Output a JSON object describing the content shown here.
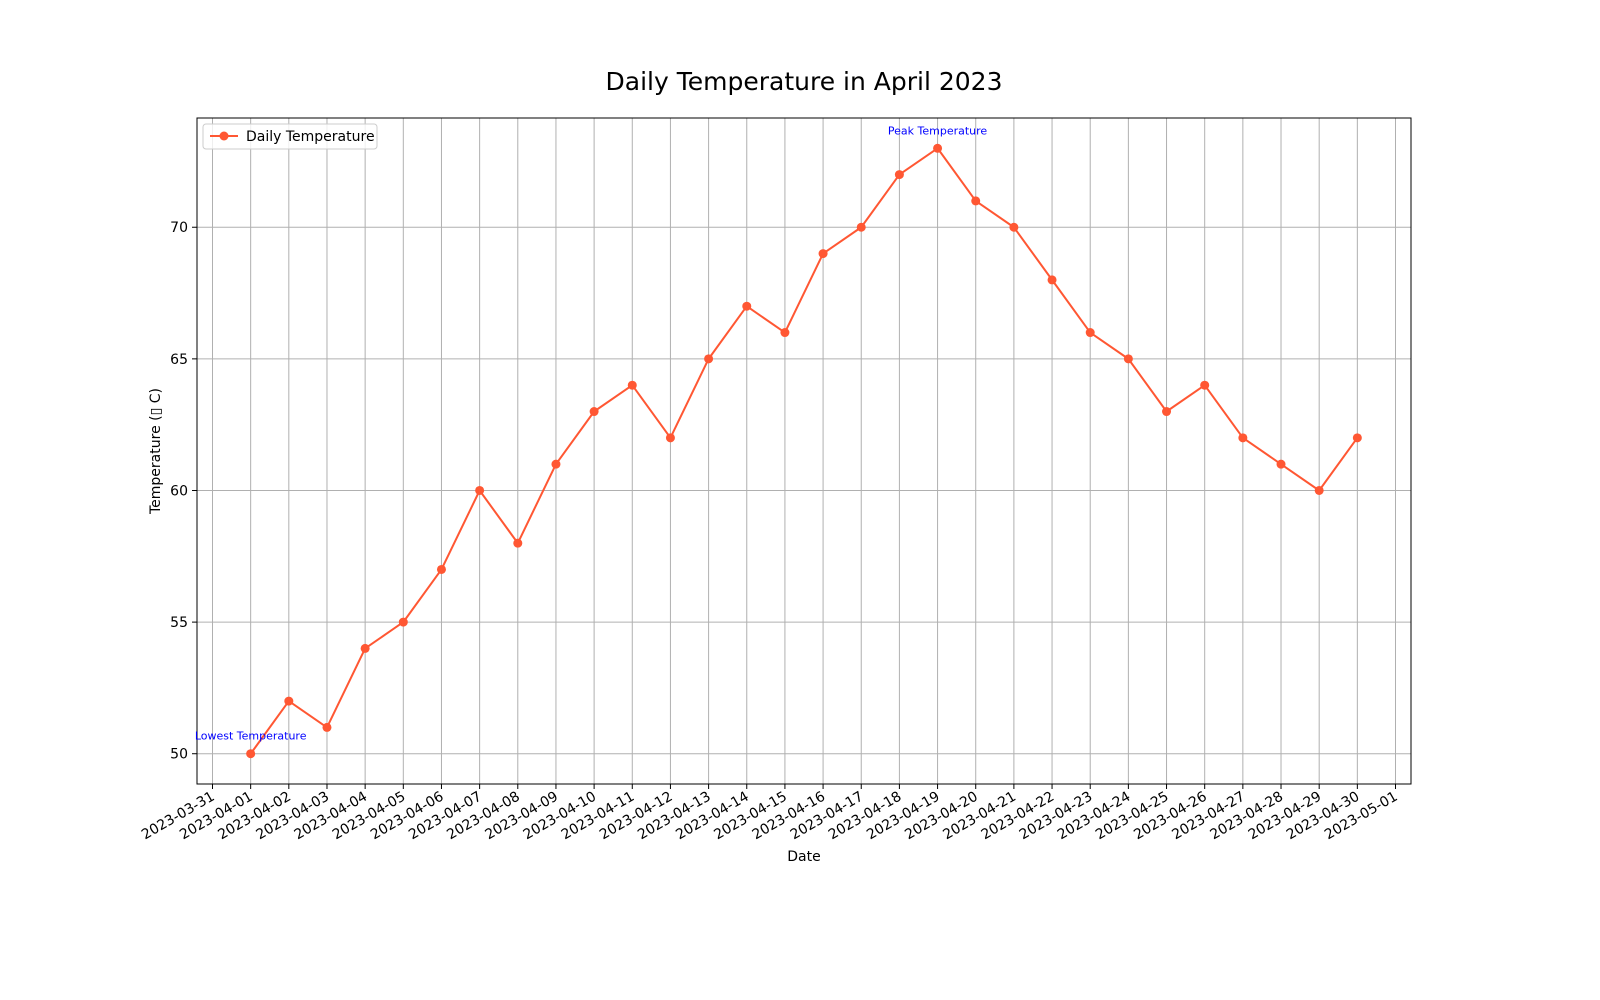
{
  "chart_data": {
    "type": "line",
    "title": "Daily Temperature in April 2023",
    "xlabel": "Date",
    "ylabel": "Temperature (▯ C)",
    "x_ticks": [
      "2023-03-31",
      "2023-04-01",
      "2023-04-02",
      "2023-04-03",
      "2023-04-04",
      "2023-04-05",
      "2023-04-06",
      "2023-04-07",
      "2023-04-08",
      "2023-04-09",
      "2023-04-10",
      "2023-04-11",
      "2023-04-12",
      "2023-04-13",
      "2023-04-14",
      "2023-04-15",
      "2023-04-16",
      "2023-04-17",
      "2023-04-18",
      "2023-04-19",
      "2023-04-20",
      "2023-04-21",
      "2023-04-22",
      "2023-04-23",
      "2023-04-24",
      "2023-04-25",
      "2023-04-26",
      "2023-04-27",
      "2023-04-28",
      "2023-04-29",
      "2023-04-30",
      "2023-05-01"
    ],
    "y_ticks": [
      50,
      55,
      60,
      65,
      70
    ],
    "x_range": [
      "2023-03-31",
      "2023-05-01"
    ],
    "ylim": [
      48.85,
      74.15
    ],
    "grid": true,
    "legend_position": "top-left",
    "series": [
      {
        "name": "Daily Temperature",
        "color": "#ff5733",
        "marker": "circle",
        "x": [
          "2023-04-01",
          "2023-04-02",
          "2023-04-03",
          "2023-04-04",
          "2023-04-05",
          "2023-04-06",
          "2023-04-07",
          "2023-04-08",
          "2023-04-09",
          "2023-04-10",
          "2023-04-11",
          "2023-04-12",
          "2023-04-13",
          "2023-04-14",
          "2023-04-15",
          "2023-04-16",
          "2023-04-17",
          "2023-04-18",
          "2023-04-19",
          "2023-04-20",
          "2023-04-21",
          "2023-04-22",
          "2023-04-23",
          "2023-04-24",
          "2023-04-25",
          "2023-04-26",
          "2023-04-27",
          "2023-04-28",
          "2023-04-29",
          "2023-04-30"
        ],
        "values": [
          50,
          52,
          51,
          54,
          55,
          57,
          60,
          58,
          61,
          63,
          64,
          62,
          65,
          67,
          66,
          69,
          70,
          72,
          73,
          71,
          70,
          68,
          66,
          65,
          63,
          64,
          62,
          61,
          60,
          62
        ]
      }
    ],
    "annotations": [
      {
        "text": "Peak Temperature",
        "x": "2023-04-19",
        "y": 73,
        "color": "#0000ff"
      },
      {
        "text": "Lowest Temperature",
        "x": "2023-04-01",
        "y": 50,
        "color": "#0000ff"
      }
    ]
  }
}
